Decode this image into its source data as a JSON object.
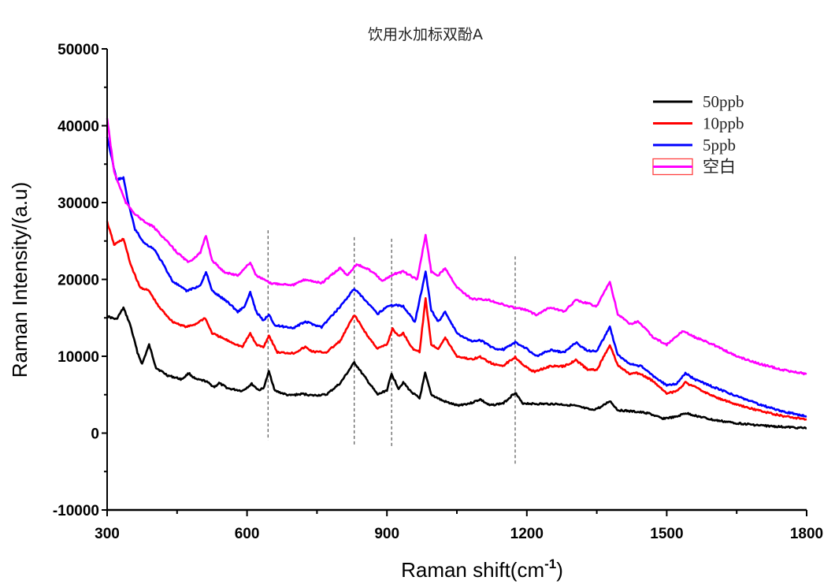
{
  "chart_data": {
    "type": "line",
    "title": "饮用水加标双酚A",
    "xlabel": "Raman shift(cm",
    "xlabel_superscript": "-1",
    "xlabel_suffix": ")",
    "ylabel": "Raman Intensity/(a.u)",
    "xlim": [
      300,
      1800
    ],
    "ylim": [
      -10000,
      50000
    ],
    "xticks": [
      300,
      600,
      900,
      1200,
      1500,
      1800
    ],
    "xticks_minor": [
      450,
      750,
      1050,
      1350,
      1650
    ],
    "yticks": [
      -10000,
      0,
      10000,
      20000,
      30000,
      40000,
      50000
    ],
    "yticks_minor": [
      -5000,
      5000,
      15000,
      25000,
      35000,
      45000
    ],
    "grid": false,
    "legend_position": "top-right",
    "reference_lines": [
      {
        "x": 645,
        "y_range": [
          -900,
          26400
        ]
      },
      {
        "x": 830,
        "y_range": [
          -1700,
          25500
        ]
      },
      {
        "x": 910,
        "y_range": [
          -1700,
          25300
        ]
      },
      {
        "x": 1175,
        "y_range": [
          -4200,
          23000
        ]
      }
    ],
    "series": [
      {
        "name": "50ppb",
        "color": "#000000",
        "points": [
          [
            300,
            15200
          ],
          [
            320,
            14800
          ],
          [
            335,
            16300
          ],
          [
            350,
            14000
          ],
          [
            365,
            10500
          ],
          [
            375,
            9000
          ],
          [
            390,
            11500
          ],
          [
            405,
            8500
          ],
          [
            430,
            7500
          ],
          [
            460,
            7000
          ],
          [
            475,
            7800
          ],
          [
            490,
            7000
          ],
          [
            510,
            6800
          ],
          [
            530,
            6000
          ],
          [
            540,
            6500
          ],
          [
            560,
            5800
          ],
          [
            590,
            5500
          ],
          [
            610,
            6400
          ],
          [
            625,
            5600
          ],
          [
            635,
            5800
          ],
          [
            647,
            8000
          ],
          [
            660,
            5500
          ],
          [
            690,
            4900
          ],
          [
            720,
            5100
          ],
          [
            740,
            4900
          ],
          [
            770,
            5000
          ],
          [
            800,
            6500
          ],
          [
            830,
            9200
          ],
          [
            850,
            7500
          ],
          [
            880,
            5000
          ],
          [
            900,
            5600
          ],
          [
            910,
            7700
          ],
          [
            925,
            5800
          ],
          [
            935,
            6600
          ],
          [
            950,
            5500
          ],
          [
            970,
            4500
          ],
          [
            982,
            7800
          ],
          [
            995,
            5000
          ],
          [
            1020,
            4200
          ],
          [
            1050,
            3600
          ],
          [
            1080,
            3900
          ],
          [
            1100,
            4400
          ],
          [
            1120,
            3600
          ],
          [
            1150,
            3900
          ],
          [
            1175,
            5300
          ],
          [
            1190,
            3900
          ],
          [
            1220,
            3800
          ],
          [
            1260,
            3800
          ],
          [
            1300,
            3600
          ],
          [
            1340,
            3000
          ],
          [
            1360,
            3400
          ],
          [
            1378,
            4200
          ],
          [
            1395,
            3000
          ],
          [
            1430,
            2800
          ],
          [
            1460,
            2600
          ],
          [
            1490,
            1900
          ],
          [
            1520,
            2100
          ],
          [
            1540,
            2600
          ],
          [
            1560,
            2300
          ],
          [
            1600,
            1700
          ],
          [
            1650,
            1300
          ],
          [
            1700,
            1000
          ],
          [
            1750,
            800
          ],
          [
            1800,
            650
          ]
        ]
      },
      {
        "name": "10ppb",
        "color": "#ff0000",
        "points": [
          [
            300,
            27500
          ],
          [
            315,
            24500
          ],
          [
            335,
            25300
          ],
          [
            350,
            22000
          ],
          [
            370,
            19000
          ],
          [
            390,
            18500
          ],
          [
            410,
            16500
          ],
          [
            440,
            14500
          ],
          [
            470,
            13800
          ],
          [
            490,
            14200
          ],
          [
            510,
            15000
          ],
          [
            525,
            13000
          ],
          [
            560,
            12000
          ],
          [
            590,
            11200
          ],
          [
            607,
            13000
          ],
          [
            620,
            11500
          ],
          [
            635,
            11200
          ],
          [
            647,
            12700
          ],
          [
            665,
            10500
          ],
          [
            700,
            10400
          ],
          [
            725,
            11200
          ],
          [
            740,
            10600
          ],
          [
            770,
            10500
          ],
          [
            800,
            12000
          ],
          [
            830,
            15400
          ],
          [
            860,
            12500
          ],
          [
            880,
            11000
          ],
          [
            900,
            11500
          ],
          [
            912,
            13600
          ],
          [
            925,
            12600
          ],
          [
            935,
            13000
          ],
          [
            955,
            11000
          ],
          [
            970,
            10600
          ],
          [
            983,
            17500
          ],
          [
            995,
            11500
          ],
          [
            1010,
            11000
          ],
          [
            1025,
            12400
          ],
          [
            1050,
            10000
          ],
          [
            1080,
            9600
          ],
          [
            1100,
            9900
          ],
          [
            1130,
            8900
          ],
          [
            1150,
            8800
          ],
          [
            1175,
            9900
          ],
          [
            1200,
            8500
          ],
          [
            1215,
            8000
          ],
          [
            1250,
            8700
          ],
          [
            1280,
            8700
          ],
          [
            1305,
            9500
          ],
          [
            1330,
            8300
          ],
          [
            1350,
            8200
          ],
          [
            1378,
            11500
          ],
          [
            1395,
            8800
          ],
          [
            1420,
            7700
          ],
          [
            1440,
            7800
          ],
          [
            1470,
            6800
          ],
          [
            1500,
            5200
          ],
          [
            1520,
            5400
          ],
          [
            1540,
            6600
          ],
          [
            1560,
            6000
          ],
          [
            1600,
            4800
          ],
          [
            1650,
            3700
          ],
          [
            1700,
            2900
          ],
          [
            1750,
            2200
          ],
          [
            1800,
            1800
          ]
        ]
      },
      {
        "name": "5ppb",
        "color": "#0000ff",
        "points": [
          [
            300,
            38500
          ],
          [
            320,
            33000
          ],
          [
            335,
            33200
          ],
          [
            345,
            30000
          ],
          [
            360,
            26500
          ],
          [
            380,
            24700
          ],
          [
            400,
            24000
          ],
          [
            420,
            22000
          ],
          [
            440,
            19800
          ],
          [
            470,
            18500
          ],
          [
            500,
            19200
          ],
          [
            512,
            21000
          ],
          [
            525,
            18500
          ],
          [
            560,
            17000
          ],
          [
            580,
            15800
          ],
          [
            595,
            16500
          ],
          [
            607,
            18300
          ],
          [
            620,
            15800
          ],
          [
            635,
            14600
          ],
          [
            647,
            15500
          ],
          [
            660,
            14000
          ],
          [
            700,
            13700
          ],
          [
            725,
            14500
          ],
          [
            760,
            13800
          ],
          [
            800,
            16500
          ],
          [
            830,
            18800
          ],
          [
            850,
            17500
          ],
          [
            880,
            15500
          ],
          [
            900,
            16500
          ],
          [
            920,
            16700
          ],
          [
            935,
            16500
          ],
          [
            960,
            14500
          ],
          [
            983,
            21000
          ],
          [
            995,
            16000
          ],
          [
            1010,
            14500
          ],
          [
            1025,
            15800
          ],
          [
            1050,
            13000
          ],
          [
            1080,
            12000
          ],
          [
            1100,
            12100
          ],
          [
            1130,
            11000
          ],
          [
            1150,
            10900
          ],
          [
            1175,
            11800
          ],
          [
            1200,
            11000
          ],
          [
            1220,
            10000
          ],
          [
            1250,
            10800
          ],
          [
            1280,
            10500
          ],
          [
            1305,
            11800
          ],
          [
            1330,
            10700
          ],
          [
            1350,
            10700
          ],
          [
            1378,
            13800
          ],
          [
            1395,
            10200
          ],
          [
            1420,
            9000
          ],
          [
            1445,
            8700
          ],
          [
            1470,
            7500
          ],
          [
            1500,
            6200
          ],
          [
            1520,
            6400
          ],
          [
            1540,
            7800
          ],
          [
            1560,
            7000
          ],
          [
            1600,
            6000
          ],
          [
            1650,
            4800
          ],
          [
            1700,
            3700
          ],
          [
            1750,
            2800
          ],
          [
            1800,
            2200
          ]
        ]
      },
      {
        "name": "空白",
        "color": "#ff00ff",
        "legend_box_color": "#ff4040",
        "points": [
          [
            300,
            41000
          ],
          [
            315,
            34000
          ],
          [
            340,
            30000
          ],
          [
            360,
            28500
          ],
          [
            380,
            27500
          ],
          [
            400,
            26800
          ],
          [
            420,
            25500
          ],
          [
            450,
            23500
          ],
          [
            475,
            22200
          ],
          [
            500,
            23500
          ],
          [
            512,
            25700
          ],
          [
            525,
            22500
          ],
          [
            550,
            21000
          ],
          [
            580,
            20500
          ],
          [
            607,
            22200
          ],
          [
            620,
            20500
          ],
          [
            650,
            19500
          ],
          [
            700,
            19300
          ],
          [
            725,
            20000
          ],
          [
            760,
            19500
          ],
          [
            800,
            21500
          ],
          [
            815,
            20500
          ],
          [
            835,
            22000
          ],
          [
            870,
            21000
          ],
          [
            890,
            19800
          ],
          [
            920,
            20800
          ],
          [
            935,
            21000
          ],
          [
            965,
            20000
          ],
          [
            983,
            25800
          ],
          [
            995,
            21000
          ],
          [
            1010,
            20500
          ],
          [
            1025,
            21500
          ],
          [
            1050,
            19000
          ],
          [
            1080,
            17500
          ],
          [
            1120,
            17300
          ],
          [
            1160,
            16500
          ],
          [
            1200,
            16000
          ],
          [
            1220,
            15400
          ],
          [
            1250,
            16400
          ],
          [
            1280,
            15800
          ],
          [
            1305,
            17300
          ],
          [
            1335,
            16800
          ],
          [
            1350,
            16500
          ],
          [
            1378,
            19700
          ],
          [
            1395,
            15500
          ],
          [
            1420,
            14200
          ],
          [
            1440,
            14500
          ],
          [
            1470,
            12500
          ],
          [
            1500,
            11500
          ],
          [
            1520,
            12500
          ],
          [
            1535,
            13300
          ],
          [
            1560,
            12500
          ],
          [
            1600,
            11500
          ],
          [
            1650,
            10000
          ],
          [
            1700,
            9000
          ],
          [
            1750,
            8200
          ],
          [
            1800,
            7700
          ]
        ]
      }
    ]
  }
}
